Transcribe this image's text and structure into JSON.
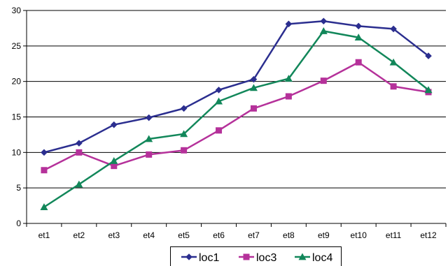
{
  "chart_data": {
    "type": "line",
    "title": "",
    "xlabel": "",
    "ylabel": "",
    "categories": [
      "et1",
      "et2",
      "et3",
      "et4",
      "et5",
      "et6",
      "et7",
      "et8",
      "et9",
      "et10",
      "et11",
      "et12"
    ],
    "ylim": [
      0,
      30
    ],
    "yticks": [
      "0",
      "5",
      "10",
      "15",
      "20",
      "25",
      "30"
    ],
    "grid": "horizontal",
    "legend_position": "bottom",
    "series": [
      {
        "name": "loc1",
        "color": "#2b2e8f",
        "marker": "diamond",
        "values": [
          10.0,
          11.3,
          13.9,
          14.9,
          16.2,
          18.8,
          20.3,
          28.1,
          28.5,
          27.8,
          27.4,
          23.6
        ]
      },
      {
        "name": "loc3",
        "color": "#b5319a",
        "marker": "square",
        "values": [
          7.5,
          10.0,
          8.1,
          9.7,
          10.3,
          13.1,
          16.2,
          17.9,
          20.1,
          22.7,
          19.3,
          18.5
        ]
      },
      {
        "name": "loc4",
        "color": "#12875a",
        "marker": "triangle",
        "values": [
          2.3,
          5.5,
          8.8,
          11.9,
          12.6,
          17.2,
          19.1,
          20.4,
          27.1,
          26.2,
          22.7,
          18.8
        ]
      }
    ]
  }
}
